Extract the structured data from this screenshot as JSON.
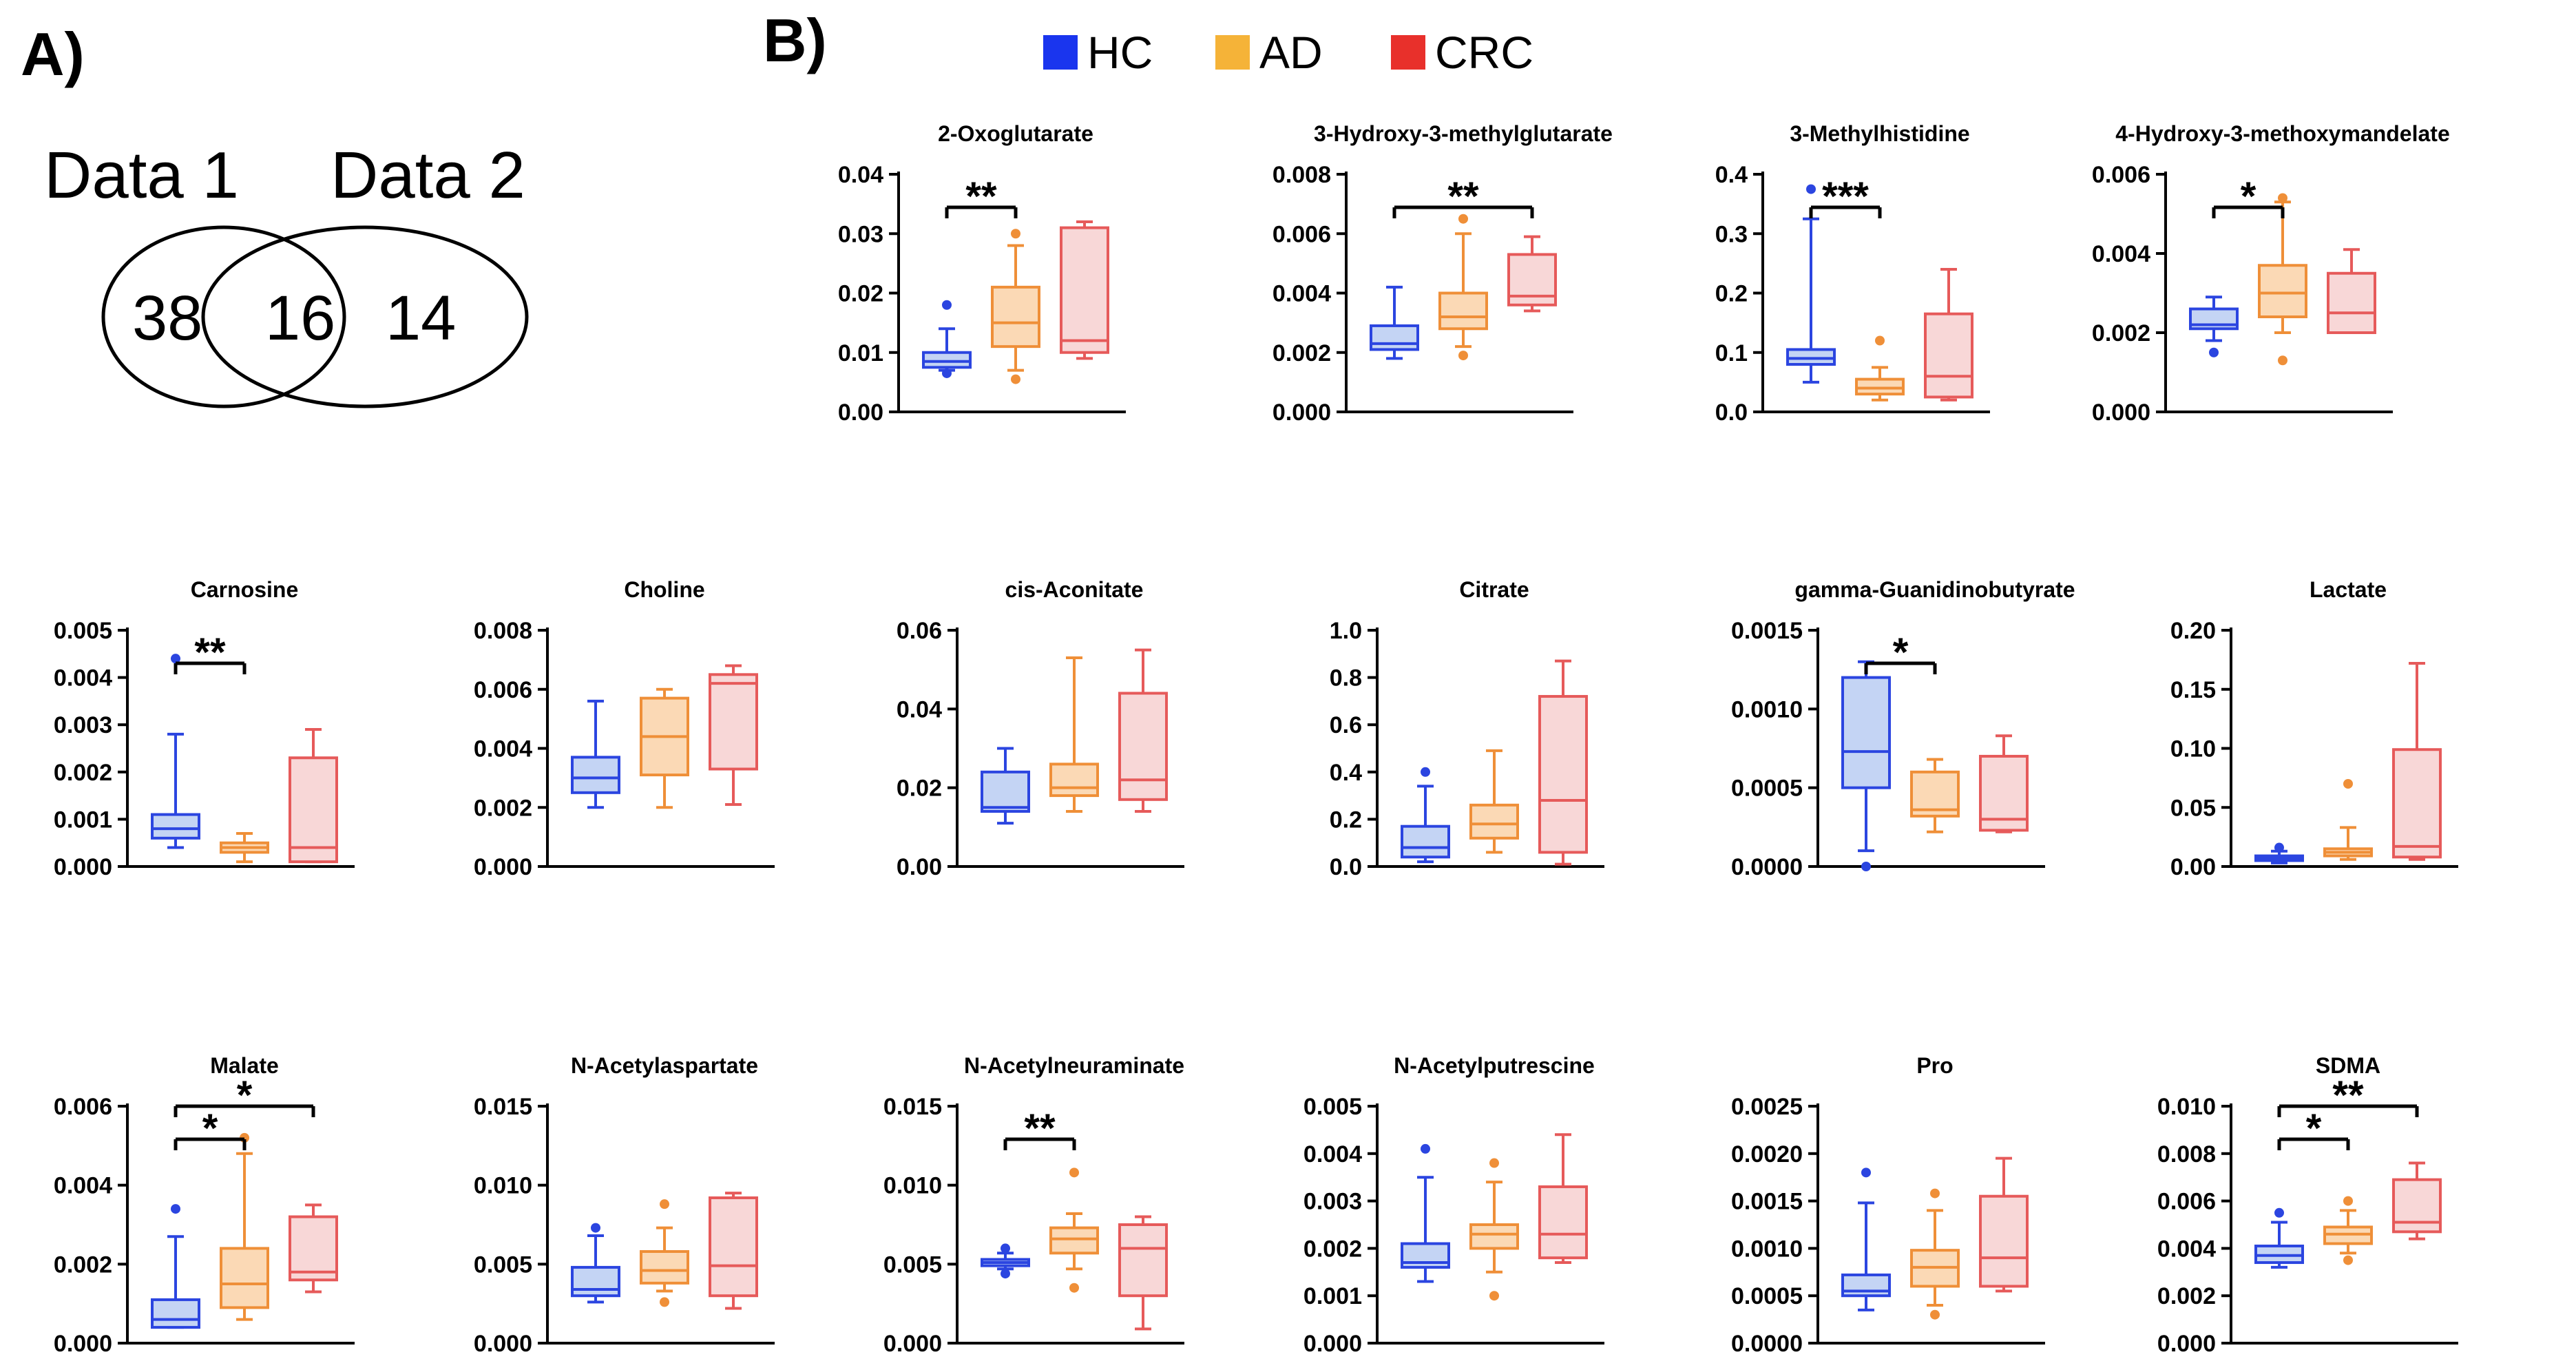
{
  "panel_labels": {
    "a": "A)",
    "b": "B)"
  },
  "venn": {
    "left_title": "Data 1",
    "right_title": "Data 2",
    "left_only": "38",
    "overlap": "16",
    "right_only": "14"
  },
  "legend": [
    {
      "label": "HC",
      "color": "#1a35ee"
    },
    {
      "label": "AD",
      "color": "#f5b338"
    },
    {
      "label": "CRC",
      "color": "#e8302b"
    }
  ],
  "groups": [
    {
      "name": "HC",
      "stroke": "#2b45e0",
      "fill": "#c4d4f4"
    },
    {
      "name": "AD",
      "stroke": "#ef8f38",
      "fill": "#fbd9b5"
    },
    {
      "name": "CRC",
      "stroke": "#e65a5a",
      "fill": "#f8d7d7"
    }
  ],
  "chart_data": [
    {
      "type": "box",
      "title": "2-Oxoglutarate",
      "ylim": [
        0,
        0.04
      ],
      "yticks": [
        "0.00",
        "0.01",
        "0.02",
        "0.03",
        "0.04"
      ],
      "boxes": [
        {
          "group": "HC",
          "min": 0.007,
          "q1": 0.0075,
          "median": 0.0085,
          "q3": 0.01,
          "max": 0.014,
          "outliers": [
            0.018,
            0.0065
          ]
        },
        {
          "group": "AD",
          "min": 0.007,
          "q1": 0.011,
          "median": 0.015,
          "q3": 0.021,
          "max": 0.028,
          "outliers": [
            0.03,
            0.0055
          ]
        },
        {
          "group": "CRC",
          "min": 0.009,
          "q1": 0.01,
          "median": 0.012,
          "q3": 0.031,
          "max": 0.032,
          "outliers": []
        }
      ],
      "significance": [
        {
          "from": 0,
          "to": 1,
          "label": "**"
        }
      ]
    },
    {
      "type": "box",
      "title": "3-Hydroxy-3-methylglutarate",
      "ylim": [
        0,
        0.008
      ],
      "yticks": [
        "0.000",
        "0.002",
        "0.004",
        "0.006",
        "0.008"
      ],
      "boxes": [
        {
          "group": "HC",
          "min": 0.0018,
          "q1": 0.0021,
          "median": 0.0023,
          "q3": 0.0029,
          "max": 0.0042,
          "outliers": []
        },
        {
          "group": "AD",
          "min": 0.0022,
          "q1": 0.0028,
          "median": 0.0032,
          "q3": 0.004,
          "max": 0.006,
          "outliers": [
            0.0065,
            0.0019
          ]
        },
        {
          "group": "CRC",
          "min": 0.0034,
          "q1": 0.0036,
          "median": 0.0039,
          "q3": 0.0053,
          "max": 0.0059,
          "outliers": []
        }
      ],
      "significance": [
        {
          "from": 0,
          "to": 2,
          "label": "**"
        }
      ]
    },
    {
      "type": "box",
      "title": "3-Methylhistidine",
      "ylim": [
        0,
        0.4
      ],
      "yticks": [
        "0.0",
        "0.1",
        "0.2",
        "0.3",
        "0.4"
      ],
      "boxes": [
        {
          "group": "HC",
          "min": 0.05,
          "q1": 0.08,
          "median": 0.09,
          "q3": 0.105,
          "max": 0.325,
          "outliers": [
            0.375
          ]
        },
        {
          "group": "AD",
          "min": 0.02,
          "q1": 0.03,
          "median": 0.04,
          "q3": 0.055,
          "max": 0.075,
          "outliers": [
            0.12
          ]
        },
        {
          "group": "CRC",
          "min": 0.02,
          "q1": 0.025,
          "median": 0.06,
          "q3": 0.165,
          "max": 0.24,
          "outliers": []
        }
      ],
      "significance": [
        {
          "from": 0,
          "to": 1,
          "label": "***"
        }
      ]
    },
    {
      "type": "box",
      "title": "4-Hydroxy-3-methoxymandelate",
      "ylim": [
        0,
        0.006
      ],
      "yticks": [
        "0.000",
        "0.002",
        "0.004",
        "0.006"
      ],
      "boxes": [
        {
          "group": "HC",
          "min": 0.0018,
          "q1": 0.0021,
          "median": 0.0022,
          "q3": 0.0026,
          "max": 0.0029,
          "outliers": [
            0.0015
          ]
        },
        {
          "group": "AD",
          "min": 0.002,
          "q1": 0.0024,
          "median": 0.003,
          "q3": 0.0037,
          "max": 0.0053,
          "outliers": [
            0.0054,
            0.0013
          ]
        },
        {
          "group": "CRC",
          "min": 0.002,
          "q1": 0.002,
          "median": 0.0025,
          "q3": 0.0035,
          "max": 0.0041,
          "outliers": []
        }
      ],
      "significance": [
        {
          "from": 0,
          "to": 1,
          "label": "*"
        }
      ]
    },
    {
      "type": "box",
      "title": "Carnosine",
      "ylim": [
        0,
        0.005
      ],
      "yticks": [
        "0.000",
        "0.001",
        "0.002",
        "0.003",
        "0.004",
        "0.005"
      ],
      "boxes": [
        {
          "group": "HC",
          "min": 0.0004,
          "q1": 0.0006,
          "median": 0.0008,
          "q3": 0.0011,
          "max": 0.0028,
          "outliers": [
            0.0044
          ]
        },
        {
          "group": "AD",
          "min": 0.0001,
          "q1": 0.0003,
          "median": 0.0004,
          "q3": 0.0005,
          "max": 0.0007,
          "outliers": []
        },
        {
          "group": "CRC",
          "min": 0.0001,
          "q1": 0.0001,
          "median": 0.0004,
          "q3": 0.0023,
          "max": 0.0029,
          "outliers": []
        }
      ],
      "significance": [
        {
          "from": 0,
          "to": 1,
          "label": "**"
        }
      ]
    },
    {
      "type": "box",
      "title": "Choline",
      "ylim": [
        0,
        0.008
      ],
      "yticks": [
        "0.000",
        "0.002",
        "0.004",
        "0.006",
        "0.008"
      ],
      "boxes": [
        {
          "group": "HC",
          "min": 0.002,
          "q1": 0.0025,
          "median": 0.003,
          "q3": 0.0037,
          "max": 0.0056,
          "outliers": []
        },
        {
          "group": "AD",
          "min": 0.002,
          "q1": 0.0031,
          "median": 0.0044,
          "q3": 0.0057,
          "max": 0.006,
          "outliers": []
        },
        {
          "group": "CRC",
          "min": 0.0021,
          "q1": 0.0033,
          "median": 0.0062,
          "q3": 0.0065,
          "max": 0.0068,
          "outliers": []
        }
      ],
      "significance": []
    },
    {
      "type": "box",
      "title": "cis-Aconitate",
      "ylim": [
        0,
        0.06
      ],
      "yticks": [
        "0.00",
        "0.02",
        "0.04",
        "0.06"
      ],
      "boxes": [
        {
          "group": "HC",
          "min": 0.011,
          "q1": 0.014,
          "median": 0.015,
          "q3": 0.024,
          "max": 0.03,
          "outliers": []
        },
        {
          "group": "AD",
          "min": 0.014,
          "q1": 0.018,
          "median": 0.02,
          "q3": 0.026,
          "max": 0.053,
          "outliers": []
        },
        {
          "group": "CRC",
          "min": 0.014,
          "q1": 0.017,
          "median": 0.022,
          "q3": 0.044,
          "max": 0.055,
          "outliers": []
        }
      ],
      "significance": []
    },
    {
      "type": "box",
      "title": "Citrate",
      "ylim": [
        0,
        1.0
      ],
      "yticks": [
        "0.0",
        "0.2",
        "0.4",
        "0.6",
        "0.8",
        "1.0"
      ],
      "boxes": [
        {
          "group": "HC",
          "min": 0.02,
          "q1": 0.04,
          "median": 0.08,
          "q3": 0.17,
          "max": 0.34,
          "outliers": [
            0.4
          ]
        },
        {
          "group": "AD",
          "min": 0.06,
          "q1": 0.12,
          "median": 0.18,
          "q3": 0.26,
          "max": 0.49,
          "outliers": []
        },
        {
          "group": "CRC",
          "min": 0.01,
          "q1": 0.06,
          "median": 0.28,
          "q3": 0.72,
          "max": 0.87,
          "outliers": []
        }
      ],
      "significance": []
    },
    {
      "type": "box",
      "title": "gamma-Guanidinobutyrate",
      "ylim": [
        0,
        0.0015
      ],
      "yticks": [
        "0.0000",
        "0.0005",
        "0.0010",
        "0.0015"
      ],
      "boxes": [
        {
          "group": "HC",
          "min": 0.0001,
          "q1": 0.0005,
          "median": 0.00073,
          "q3": 0.0012,
          "max": 0.0013,
          "outliers": [
            0.0
          ]
        },
        {
          "group": "AD",
          "min": 0.00022,
          "q1": 0.00032,
          "median": 0.00036,
          "q3": 0.0006,
          "max": 0.00068,
          "outliers": []
        },
        {
          "group": "CRC",
          "min": 0.00022,
          "q1": 0.00023,
          "median": 0.0003,
          "q3": 0.0007,
          "max": 0.00083,
          "outliers": []
        }
      ],
      "significance": [
        {
          "from": 0,
          "to": 1,
          "label": "*"
        }
      ]
    },
    {
      "type": "box",
      "title": "Lactate",
      "ylim": [
        0,
        0.2
      ],
      "yticks": [
        "0.00",
        "0.05",
        "0.10",
        "0.15",
        "0.20"
      ],
      "boxes": [
        {
          "group": "HC",
          "min": 0.003,
          "q1": 0.005,
          "median": 0.007,
          "q3": 0.009,
          "max": 0.013,
          "outliers": [
            0.016
          ]
        },
        {
          "group": "AD",
          "min": 0.006,
          "q1": 0.009,
          "median": 0.012,
          "q3": 0.015,
          "max": 0.033,
          "outliers": [
            0.07
          ]
        },
        {
          "group": "CRC",
          "min": 0.006,
          "q1": 0.008,
          "median": 0.017,
          "q3": 0.099,
          "max": 0.172,
          "outliers": []
        }
      ],
      "significance": []
    },
    {
      "type": "box",
      "title": "Malate",
      "ylim": [
        0,
        0.006
      ],
      "yticks": [
        "0.000",
        "0.002",
        "0.004",
        "0.006"
      ],
      "boxes": [
        {
          "group": "HC",
          "min": 0.0004,
          "q1": 0.0004,
          "median": 0.0006,
          "q3": 0.0011,
          "max": 0.0027,
          "outliers": [
            0.0034
          ]
        },
        {
          "group": "AD",
          "min": 0.0006,
          "q1": 0.0009,
          "median": 0.0015,
          "q3": 0.0024,
          "max": 0.0048,
          "outliers": [
            0.0052
          ]
        },
        {
          "group": "CRC",
          "min": 0.0013,
          "q1": 0.0016,
          "median": 0.0018,
          "q3": 0.0032,
          "max": 0.0035,
          "outliers": []
        }
      ],
      "significance": [
        {
          "from": 0,
          "to": 1,
          "label": "*"
        },
        {
          "from": 0,
          "to": 2,
          "label": "*"
        }
      ]
    },
    {
      "type": "box",
      "title": "N-Acetylaspartate",
      "ylim": [
        0,
        0.015
      ],
      "yticks": [
        "0.000",
        "0.005",
        "0.010",
        "0.015"
      ],
      "boxes": [
        {
          "group": "HC",
          "min": 0.0026,
          "q1": 0.003,
          "median": 0.0034,
          "q3": 0.0048,
          "max": 0.0068,
          "outliers": [
            0.0073
          ]
        },
        {
          "group": "AD",
          "min": 0.0033,
          "q1": 0.0038,
          "median": 0.0046,
          "q3": 0.0058,
          "max": 0.0073,
          "outliers": [
            0.0088,
            0.0026
          ]
        },
        {
          "group": "CRC",
          "min": 0.0022,
          "q1": 0.003,
          "median": 0.0049,
          "q3": 0.0092,
          "max": 0.0095,
          "outliers": []
        }
      ],
      "significance": []
    },
    {
      "type": "box",
      "title": "N-Acetylneuraminate",
      "ylim": [
        0,
        0.015
      ],
      "yticks": [
        "0.000",
        "0.005",
        "0.010",
        "0.015"
      ],
      "boxes": [
        {
          "group": "HC",
          "min": 0.0047,
          "q1": 0.0049,
          "median": 0.0051,
          "q3": 0.0053,
          "max": 0.0057,
          "outliers": [
            0.006,
            0.0044
          ]
        },
        {
          "group": "AD",
          "min": 0.0047,
          "q1": 0.0057,
          "median": 0.0066,
          "q3": 0.0073,
          "max": 0.0082,
          "outliers": [
            0.0108,
            0.0035
          ]
        },
        {
          "group": "CRC",
          "min": 0.0009,
          "q1": 0.003,
          "median": 0.006,
          "q3": 0.0075,
          "max": 0.008,
          "outliers": []
        }
      ],
      "significance": [
        {
          "from": 0,
          "to": 1,
          "label": "**"
        }
      ]
    },
    {
      "type": "box",
      "title": "N-Acetylputrescine",
      "ylim": [
        0,
        0.005
      ],
      "yticks": [
        "0.000",
        "0.001",
        "0.002",
        "0.003",
        "0.004",
        "0.005"
      ],
      "boxes": [
        {
          "group": "HC",
          "min": 0.0013,
          "q1": 0.0016,
          "median": 0.0017,
          "q3": 0.0021,
          "max": 0.0035,
          "outliers": [
            0.0041
          ]
        },
        {
          "group": "AD",
          "min": 0.0015,
          "q1": 0.002,
          "median": 0.0023,
          "q3": 0.0025,
          "max": 0.0034,
          "outliers": [
            0.0038,
            0.001
          ]
        },
        {
          "group": "CRC",
          "min": 0.0017,
          "q1": 0.0018,
          "median": 0.0023,
          "q3": 0.0033,
          "max": 0.0044,
          "outliers": []
        }
      ],
      "significance": []
    },
    {
      "type": "box",
      "title": "Pro",
      "ylim": [
        0,
        0.0025
      ],
      "yticks": [
        "0.0000",
        "0.0005",
        "0.0010",
        "0.0015",
        "0.0020",
        "0.0025"
      ],
      "boxes": [
        {
          "group": "HC",
          "min": 0.00035,
          "q1": 0.0005,
          "median": 0.00055,
          "q3": 0.00072,
          "max": 0.00148,
          "outliers": [
            0.0018
          ]
        },
        {
          "group": "AD",
          "min": 0.0004,
          "q1": 0.0006,
          "median": 0.0008,
          "q3": 0.00098,
          "max": 0.0014,
          "outliers": [
            0.00158,
            0.0003
          ]
        },
        {
          "group": "CRC",
          "min": 0.00055,
          "q1": 0.0006,
          "median": 0.0009,
          "q3": 0.00155,
          "max": 0.00195,
          "outliers": []
        }
      ],
      "significance": []
    },
    {
      "type": "box",
      "title": "SDMA",
      "ylim": [
        0,
        0.01
      ],
      "yticks": [
        "0.000",
        "0.002",
        "0.004",
        "0.006",
        "0.008",
        "0.010"
      ],
      "boxes": [
        {
          "group": "HC",
          "min": 0.0032,
          "q1": 0.0034,
          "median": 0.0037,
          "q3": 0.0041,
          "max": 0.0051,
          "outliers": [
            0.0055
          ]
        },
        {
          "group": "AD",
          "min": 0.0038,
          "q1": 0.0042,
          "median": 0.0046,
          "q3": 0.0049,
          "max": 0.0056,
          "outliers": [
            0.006,
            0.0035
          ]
        },
        {
          "group": "CRC",
          "min": 0.0044,
          "q1": 0.0047,
          "median": 0.0051,
          "q3": 0.0069,
          "max": 0.0076,
          "outliers": []
        }
      ],
      "significance": [
        {
          "from": 0,
          "to": 1,
          "label": "*"
        },
        {
          "from": 0,
          "to": 2,
          "label": "**"
        }
      ]
    }
  ]
}
